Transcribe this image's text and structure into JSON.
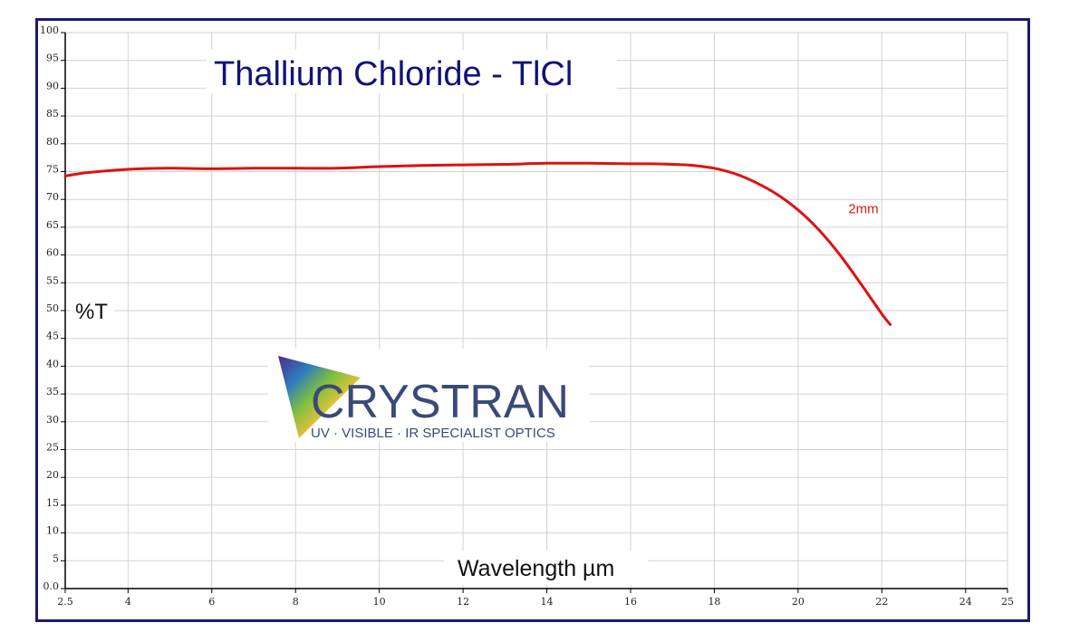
{
  "chart_data": {
    "type": "line",
    "title": "Thallium Chloride - TlCl",
    "xlabel": "Wavelength µm",
    "ylabel": "%T",
    "xlim": [
      2.5,
      25
    ],
    "ylim": [
      0,
      100
    ],
    "grid": true,
    "x_ticks": [
      2.5,
      4,
      6,
      8,
      10,
      12,
      14,
      16,
      18,
      20,
      22,
      24,
      25
    ],
    "x_tick_labels": [
      "2.5",
      "4",
      "6",
      "8",
      "10",
      "12",
      "14",
      "16",
      "18",
      "20",
      "22",
      "24",
      "25"
    ],
    "y_ticks": [
      0,
      5,
      10,
      15,
      20,
      25,
      30,
      35,
      40,
      45,
      50,
      55,
      60,
      65,
      70,
      75,
      80,
      85,
      90,
      95,
      100
    ],
    "y_tick_labels": [
      "0.0",
      "5",
      "10",
      "15",
      "20",
      "25",
      "30",
      "35",
      "40",
      "45",
      "50",
      "55",
      "60",
      "65",
      "70",
      "75",
      "80",
      "85",
      "90",
      "95",
      "100"
    ],
    "series": [
      {
        "name": "2mm",
        "color": "#e01010",
        "x": [
          2.5,
          3,
          4,
          5,
          6,
          7,
          8,
          9,
          10,
          11,
          12,
          13,
          14,
          15,
          16,
          16.5,
          17,
          17.5,
          18,
          18.5,
          19,
          19.5,
          20,
          20.5,
          21,
          21.5,
          22,
          22.2
        ],
        "y": [
          74.2,
          74.8,
          75.4,
          75.6,
          75.5,
          75.6,
          75.6,
          75.6,
          75.9,
          76.1,
          76.2,
          76.3,
          76.5,
          76.5,
          76.4,
          76.4,
          76.3,
          76.1,
          75.6,
          74.6,
          73.0,
          70.9,
          68.1,
          64.5,
          60.0,
          54.8,
          49.4,
          47.5
        ]
      }
    ],
    "annotations": [
      {
        "text": "2mm",
        "x": 21.2,
        "y": 67.5
      }
    ]
  },
  "logo": {
    "name": "CRYSTRAN",
    "tagline": "UV · VISIBLE · IR SPECIALIST OPTICS"
  },
  "colors": {
    "frame": "#1a1a6e",
    "grid": "#d2d2d2",
    "curve": "#e01010",
    "title": "#12127a"
  }
}
